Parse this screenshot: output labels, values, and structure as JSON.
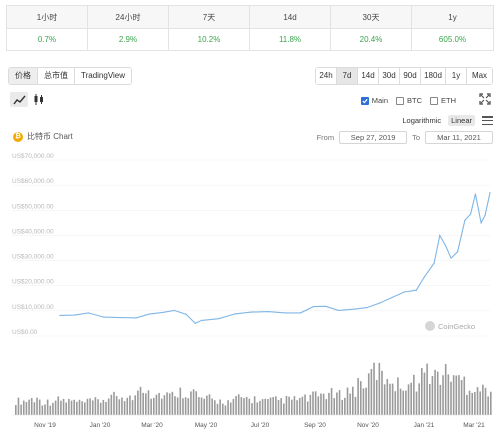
{
  "change_table": [
    {
      "period": "1小时",
      "value": "0.7%"
    },
    {
      "period": "24小时",
      "value": "2.9%"
    },
    {
      "period": "7天",
      "value": "10.2%"
    },
    {
      "period": "14d",
      "value": "11.8%"
    },
    {
      "period": "30天",
      "value": "20.4%"
    },
    {
      "period": "1y",
      "value": "605.0%"
    }
  ],
  "view_tabs": [
    "价格",
    "总市值",
    "TradingView"
  ],
  "range_tabs": [
    "24h",
    "7d",
    "14d",
    "30d",
    "90d",
    "180d",
    "1y",
    "Max"
  ],
  "series_toggles": [
    {
      "label": "Main",
      "checked": true
    },
    {
      "label": "BTC",
      "checked": false
    },
    {
      "label": "ETH",
      "checked": false
    }
  ],
  "scale_options": [
    "Logarithmic",
    "Linear"
  ],
  "chart_header": {
    "title": "比特币 Chart",
    "from_label": "From",
    "from_date": "Sep 27, 2019",
    "to_label": "To",
    "to_date": "Mar 11, 2021"
  },
  "watermark": "CoinGecko",
  "colors": {
    "positive": "#3aa64c",
    "line": "#7fb6e6",
    "volume": "#9a9a9a",
    "accent": "#2e6fd6"
  },
  "chart_data": {
    "type": "line",
    "y_ticks": [
      "US$70,000.00",
      "US$60,000.00",
      "US$50,000.00",
      "US$40,000.00",
      "US$30,000.00",
      "US$20,000.00",
      "US$10,000.00",
      "US$0.00"
    ],
    "ylim": [
      0,
      70000
    ],
    "x_ticks": [
      "Nov '19",
      "Jan '20",
      "Mar '20",
      "May '20",
      "Jul '20",
      "Sep '20",
      "Nov '20",
      "Jan '21",
      "Mar '21"
    ],
    "x": [
      "2019-09-27",
      "2019-10-15",
      "2019-11-01",
      "2019-11-20",
      "2019-12-10",
      "2019-12-30",
      "2020-01-15",
      "2020-02-01",
      "2020-02-15",
      "2020-03-01",
      "2020-03-12",
      "2020-03-20",
      "2020-04-10",
      "2020-04-30",
      "2020-05-20",
      "2020-06-10",
      "2020-07-01",
      "2020-07-20",
      "2020-08-05",
      "2020-08-20",
      "2020-09-05",
      "2020-09-25",
      "2020-10-10",
      "2020-10-25",
      "2020-11-10",
      "2020-11-25",
      "2020-12-10",
      "2020-12-20",
      "2021-01-01",
      "2021-01-08",
      "2021-01-15",
      "2021-01-22",
      "2021-01-30",
      "2021-02-08",
      "2021-02-15",
      "2021-02-21",
      "2021-02-28",
      "2021-03-05",
      "2021-03-11"
    ],
    "values": [
      8200,
      8300,
      9200,
      7500,
      7300,
      7200,
      8700,
      9400,
      10200,
      8600,
      5000,
      6200,
      6900,
      8800,
      9500,
      9700,
      9200,
      9200,
      11700,
      11800,
      10200,
      10700,
      11300,
      13000,
      15300,
      17500,
      18200,
      23500,
      29000,
      40000,
      36000,
      31000,
      33500,
      46000,
      48500,
      56500,
      45000,
      48000,
      57000
    ],
    "volume": [
      0.3,
      0.34,
      0.28,
      0.32,
      0.3,
      0.27,
      0.3,
      0.34,
      0.4,
      0.36,
      0.6,
      0.45,
      0.42,
      0.5,
      0.48,
      0.35,
      0.3,
      0.28,
      0.36,
      0.34,
      0.3,
      0.32,
      0.33,
      0.35,
      0.4,
      0.45,
      0.42,
      0.52,
      0.7,
      0.95,
      0.8,
      0.65,
      0.7,
      0.9,
      0.85,
      0.88,
      0.75,
      0.6,
      0.55
    ]
  }
}
